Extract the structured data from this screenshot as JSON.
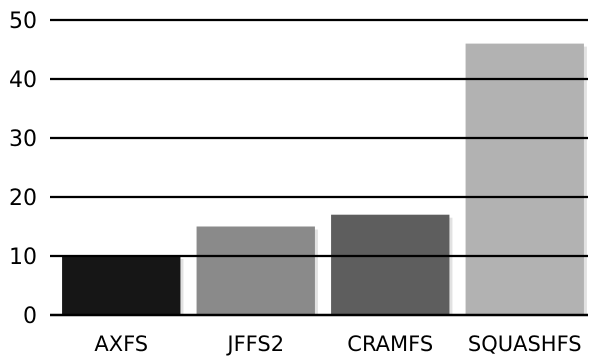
{
  "chart_data": {
    "type": "bar",
    "categories": [
      "AXFS",
      "JFFS2",
      "CRAMFS",
      "SQUASHFS"
    ],
    "values": [
      10,
      15,
      17,
      46
    ],
    "colors": [
      "#161616",
      "#8a8a8a",
      "#5e5e5e",
      "#b2b2b2"
    ],
    "ylim": [
      0,
      50
    ],
    "yticks": [
      "0",
      "10",
      "20",
      "30",
      "40",
      "50"
    ],
    "grid": true,
    "title": "",
    "xlabel": "",
    "ylabel": ""
  }
}
